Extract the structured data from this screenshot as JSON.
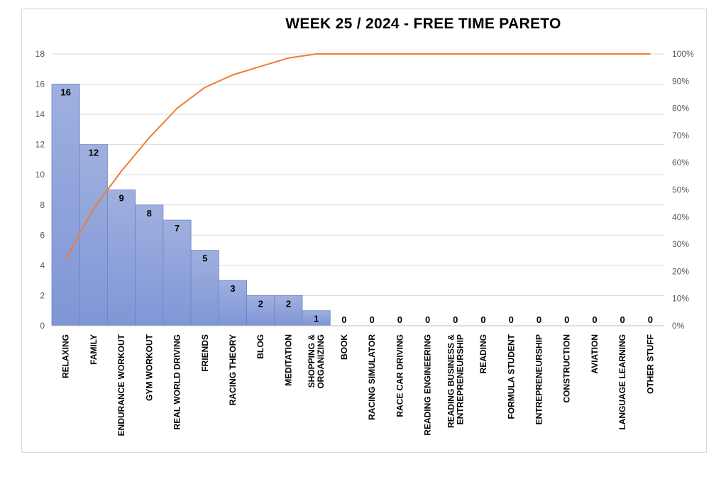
{
  "chart_data": {
    "type": "bar",
    "title": "WEEK 25 / 2024  - FREE TIME PARETO",
    "categories": [
      "RELAXING",
      "FAMILY",
      "ENDURANCE WORKOUT",
      "GYM WORKOUT",
      "REAL WORLD DRIVING",
      "FRIENDS",
      "RACING THEORY",
      "BLOG",
      "MEDITATION",
      "SHOPPING &\nORGANIZING",
      "BOOK",
      "RACING SIMULATOR",
      "RACE CAR DRIVING",
      "READING ENGINEERING",
      "READING BUSINESS &\nENTREPRENEURSHIP",
      "READING",
      "FORMULA STUDENT",
      "ENTREPRENEURSHIP",
      "CONSTRUCTION",
      "AVIATION",
      "LANGUAGE LEARNING",
      "OTHER STUFF"
    ],
    "series": [
      {
        "type": "bar",
        "values": [
          16,
          12,
          9,
          8,
          7,
          5,
          3,
          2,
          2,
          1,
          0,
          0,
          0,
          0,
          0,
          0,
          0,
          0,
          0,
          0,
          0,
          0
        ]
      },
      {
        "type": "line",
        "axis": "right",
        "values": [
          24.6,
          43.1,
          56.9,
          69.2,
          80.0,
          87.7,
          92.3,
          95.4,
          98.5,
          100,
          100,
          100,
          100,
          100,
          100,
          100,
          100,
          100,
          100,
          100,
          100,
          100
        ]
      }
    ],
    "ylim": [
      0,
      18
    ],
    "yticks": [
      "0",
      "2",
      "4",
      "6",
      "8",
      "10",
      "12",
      "14",
      "16",
      "18"
    ],
    "y2lim": [
      0,
      100
    ],
    "y2ticks": [
      "0%",
      "10%",
      "20%",
      "30%",
      "40%",
      "50%",
      "60%",
      "70%",
      "80%",
      "90%",
      "100%"
    ],
    "grid": true,
    "colors": {
      "bar_top": "#9fb0df",
      "bar_bottom": "#7f96d6",
      "bar_border": "#6c84c8",
      "line": "#ed7d31",
      "grid": "#d9d9d9"
    }
  }
}
